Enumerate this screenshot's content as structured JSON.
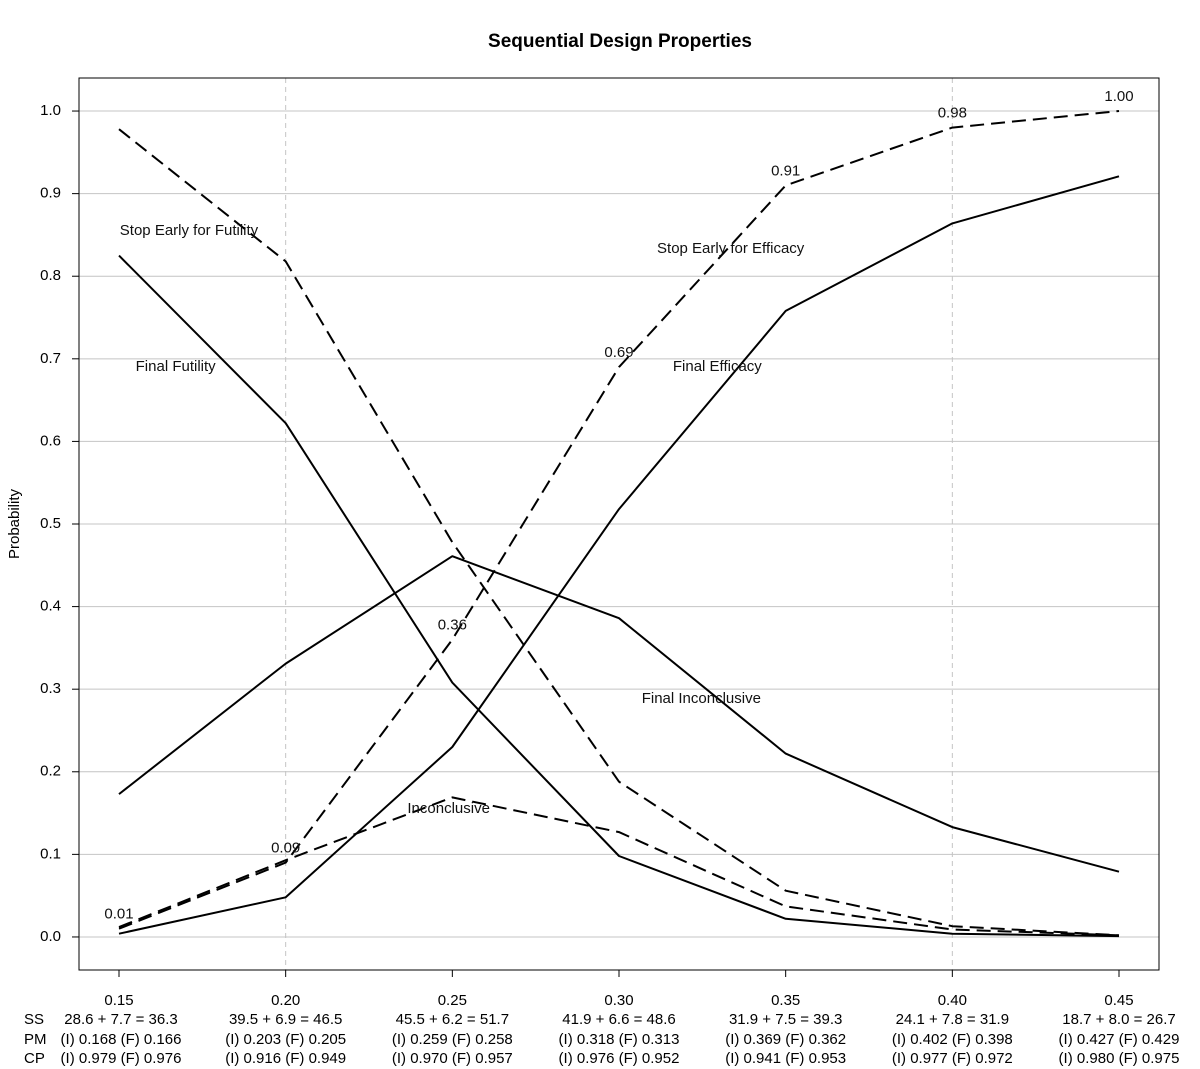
{
  "chart_data": {
    "type": "line",
    "title": "Sequential Design Properties",
    "xlabel": "",
    "ylabel": "Probability",
    "xlim": [
      0.138,
      0.462
    ],
    "ylim": [
      -0.04,
      1.04
    ],
    "x": [
      0.15,
      0.2,
      0.25,
      0.3,
      0.35,
      0.4,
      0.45
    ],
    "x_tick_labels": [
      "0.15",
      "0.20",
      "0.25",
      "0.30",
      "0.35",
      "0.40",
      "0.45"
    ],
    "y_ticks": [
      0.0,
      0.1,
      0.2,
      0.3,
      0.4,
      0.5,
      0.6,
      0.7,
      0.8,
      0.9,
      1.0
    ],
    "y_tick_labels": [
      "0.0",
      "0.1",
      "0.2",
      "0.3",
      "0.4",
      "0.5",
      "0.6",
      "0.7",
      "0.8",
      "0.9",
      "1.0"
    ],
    "grid": {
      "horizontal": true,
      "vertical_dashed_at": [
        0.2,
        0.4
      ]
    },
    "series": [
      {
        "label": "Stop Early for Futility",
        "style": "dashed",
        "values": [
          0.978,
          0.818,
          0.478,
          0.188,
          0.056,
          0.013,
          0.002
        ],
        "label_x": 0.171,
        "label_y": 0.855
      },
      {
        "label": "Final Futility",
        "style": "solid",
        "values": [
          0.825,
          0.622,
          0.308,
          0.098,
          0.022,
          0.004,
          0.001
        ],
        "label_x": 0.167,
        "label_y": 0.69
      },
      {
        "label": "Stop Early for Efficacy",
        "style": "dashed",
        "values": [
          0.01,
          0.09,
          0.36,
          0.69,
          0.91,
          0.98,
          1.0
        ],
        "label_x": 0.3335,
        "label_y": 0.833,
        "point_labels": [
          "0.01",
          "0.09",
          "0.36",
          "0.69",
          "0.91",
          "0.98",
          "1.00"
        ]
      },
      {
        "label": "Final Efficacy",
        "style": "solid",
        "values": [
          0.004,
          0.048,
          0.23,
          0.518,
          0.758,
          0.864,
          0.921
        ],
        "label_x": 0.3295,
        "label_y": 0.69
      },
      {
        "label": "Final Inconclusive",
        "style": "solid",
        "values": [
          0.173,
          0.331,
          0.461,
          0.386,
          0.222,
          0.133,
          0.079
        ],
        "label_x": 0.3247,
        "label_y": 0.288
      },
      {
        "label": "Inconclusive",
        "style": "dashed",
        "values": [
          0.012,
          0.093,
          0.169,
          0.127,
          0.037,
          0.009,
          0.002
        ],
        "label_x": 0.2489,
        "label_y": 0.155
      }
    ],
    "footer_rows": [
      {
        "label": "SS",
        "values": [
          "28.6 + 7.7 = 36.3",
          "39.5 + 6.9 = 46.5",
          "45.5 + 6.2 = 51.7",
          "41.9 + 6.6 = 48.6",
          "31.9 + 7.5 = 39.3",
          "24.1 + 7.8 = 31.9",
          "18.7 + 8.0 = 26.7"
        ]
      },
      {
        "label": "PM",
        "values": [
          "(I) 0.168 (F) 0.166",
          "(I) 0.203 (F) 0.205",
          "(I) 0.259 (F) 0.258",
          "(I) 0.318 (F) 0.313",
          "(I) 0.369 (F) 0.362",
          "(I) 0.402 (F) 0.398",
          "(I) 0.427 (F) 0.429"
        ]
      },
      {
        "label": "CP",
        "values": [
          "(I) 0.979 (F) 0.976",
          "(I) 0.916 (F) 0.949",
          "(I) 0.970 (F) 0.957",
          "(I) 0.976 (F) 0.952",
          "(I) 0.941 (F) 0.953",
          "(I) 0.977 (F) 0.972",
          "(I) 0.980 (F) 0.975"
        ]
      }
    ]
  }
}
